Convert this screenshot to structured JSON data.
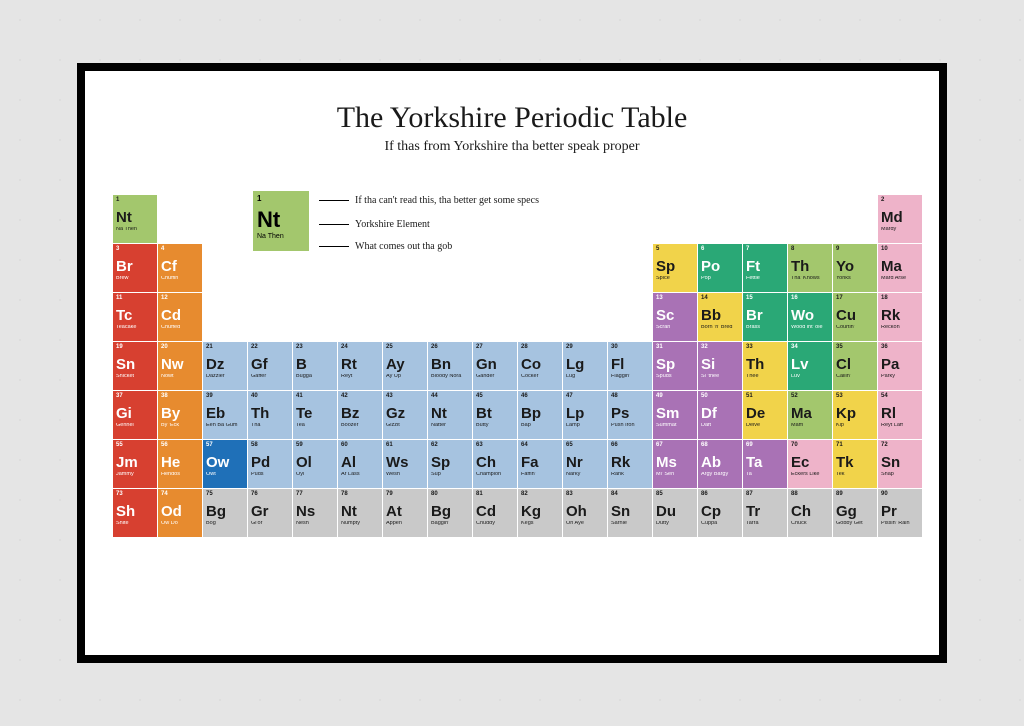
{
  "title": "The Yorkshire Periodic Table",
  "subtitle": "If thas from Yorkshire tha better speak proper",
  "legend": {
    "cell": {
      "num": "1",
      "sym": "Nt",
      "name": "Na Then",
      "bg": "#a3c76d"
    },
    "labels": {
      "top": "If tha can't read this, tha better get some specs",
      "mid": "Yorkshire Element",
      "bot": "What comes out tha gob"
    }
  },
  "colors": {
    "green": "#a3c76d",
    "red": "#d74030",
    "orange": "#e78b2f",
    "lblue": "#a6c3e0",
    "grey": "#c9c9c9",
    "blue": "#1f70b8",
    "yellow": "#f1d34a",
    "dgreen": "#2aa876",
    "purple": "#a972b5",
    "pink": "#eeb3c9",
    "text_dark": "#1a1a1a",
    "text_light": "#ffffff"
  },
  "elements": [
    {
      "r": 1,
      "c": 1,
      "n": 1,
      "s": "Nt",
      "m": "Na Then",
      "k": "green"
    },
    {
      "r": 2,
      "c": 1,
      "n": 3,
      "s": "Br",
      "m": "Brew",
      "k": "red"
    },
    {
      "r": 2,
      "c": 2,
      "n": 4,
      "s": "Cf",
      "m": "Chuffin",
      "k": "orange"
    },
    {
      "r": 2,
      "c": 13,
      "n": 5,
      "s": "Sp",
      "m": "Spice",
      "k": "yellow"
    },
    {
      "r": 2,
      "c": 14,
      "n": 6,
      "s": "Po",
      "m": "Pop",
      "k": "dgreen"
    },
    {
      "r": 2,
      "c": 15,
      "n": 7,
      "s": "Ft",
      "m": "Fettle",
      "k": "dgreen"
    },
    {
      "r": 2,
      "c": 16,
      "n": 8,
      "s": "Th",
      "m": "Tha' Knows",
      "k": "green"
    },
    {
      "r": 2,
      "c": 17,
      "n": 9,
      "s": "Yo",
      "m": "Yonks",
      "k": "green"
    },
    {
      "r": 2,
      "c": 18,
      "n": 10,
      "s": "Ma",
      "m": "Mard Arse",
      "k": "pink"
    },
    {
      "r": 1,
      "c": 18,
      "n": 2,
      "s": "Md",
      "m": "Mardy",
      "k": "pink"
    },
    {
      "r": 3,
      "c": 1,
      "n": 11,
      "s": "Tc",
      "m": "Teacake",
      "k": "red"
    },
    {
      "r": 3,
      "c": 2,
      "n": 12,
      "s": "Cd",
      "m": "Chuffed",
      "k": "orange"
    },
    {
      "r": 3,
      "c": 13,
      "n": 13,
      "s": "Sc",
      "m": "Scran",
      "k": "purple"
    },
    {
      "r": 3,
      "c": 14,
      "n": 14,
      "s": "Bb",
      "m": "Born 'n' Bred",
      "k": "yellow"
    },
    {
      "r": 3,
      "c": 15,
      "n": 15,
      "s": "Br",
      "m": "Brass",
      "k": "dgreen"
    },
    {
      "r": 3,
      "c": 16,
      "n": 16,
      "s": "Wo",
      "m": "Wood int' ole",
      "k": "dgreen"
    },
    {
      "r": 3,
      "c": 17,
      "n": 17,
      "s": "Cu",
      "m": "Courtin'",
      "k": "green"
    },
    {
      "r": 3,
      "c": 18,
      "n": 18,
      "s": "Rk",
      "m": "Reckon",
      "k": "pink"
    },
    {
      "r": 4,
      "c": 1,
      "n": 19,
      "s": "Sn",
      "m": "Snicket",
      "k": "red"
    },
    {
      "r": 4,
      "c": 2,
      "n": 20,
      "s": "Nw",
      "m": "Nowt",
      "k": "orange"
    },
    {
      "r": 4,
      "c": 3,
      "n": 21,
      "s": "Dz",
      "m": "Dazzler",
      "k": "lblue"
    },
    {
      "r": 4,
      "c": 4,
      "n": 22,
      "s": "Gf",
      "m": "Gaffer",
      "k": "lblue"
    },
    {
      "r": 4,
      "c": 5,
      "n": 23,
      "s": "B",
      "m": "Bugga",
      "k": "lblue"
    },
    {
      "r": 4,
      "c": 6,
      "n": 24,
      "s": "Rt",
      "m": "Reyt",
      "k": "lblue"
    },
    {
      "r": 4,
      "c": 7,
      "n": 25,
      "s": "Ay",
      "m": "Ay Up",
      "k": "lblue"
    },
    {
      "r": 4,
      "c": 8,
      "n": 26,
      "s": "Bn",
      "m": "Bloody Nora",
      "k": "lblue"
    },
    {
      "r": 4,
      "c": 9,
      "n": 27,
      "s": "Gn",
      "m": "Gander",
      "k": "lblue"
    },
    {
      "r": 4,
      "c": 10,
      "n": 28,
      "s": "Co",
      "m": "Cocker",
      "k": "lblue"
    },
    {
      "r": 4,
      "c": 11,
      "n": 29,
      "s": "Lg",
      "m": "Lug",
      "k": "lblue"
    },
    {
      "r": 4,
      "c": 12,
      "n": 30,
      "s": "Fl",
      "m": "Flaggin'",
      "k": "lblue"
    },
    {
      "r": 4,
      "c": 13,
      "n": 31,
      "s": "Sp",
      "m": "Spuds",
      "k": "purple"
    },
    {
      "r": 4,
      "c": 14,
      "n": 32,
      "s": "Si",
      "m": "Si 'thee",
      "k": "purple"
    },
    {
      "r": 4,
      "c": 15,
      "n": 33,
      "s": "Th",
      "m": "Thee",
      "k": "yellow"
    },
    {
      "r": 4,
      "c": 16,
      "n": 34,
      "s": "Lv",
      "m": "Luv",
      "k": "dgreen"
    },
    {
      "r": 4,
      "c": 17,
      "n": 35,
      "s": "Cl",
      "m": "Callin'",
      "k": "green"
    },
    {
      "r": 4,
      "c": 18,
      "n": 36,
      "s": "Pa",
      "m": "Parky",
      "k": "pink"
    },
    {
      "r": 5,
      "c": 1,
      "n": 37,
      "s": "Gi",
      "m": "Gennel",
      "k": "red"
    },
    {
      "r": 5,
      "c": 2,
      "n": 38,
      "s": "By",
      "m": "By 'Eck",
      "k": "orange"
    },
    {
      "r": 5,
      "c": 3,
      "n": 39,
      "s": "Eb",
      "m": "Eeh Ba Gum",
      "k": "lblue"
    },
    {
      "r": 5,
      "c": 4,
      "n": 40,
      "s": "Th",
      "m": "Tha",
      "k": "lblue"
    },
    {
      "r": 5,
      "c": 5,
      "n": 41,
      "s": "Te",
      "m": "Tea",
      "k": "lblue"
    },
    {
      "r": 5,
      "c": 6,
      "n": 42,
      "s": "Bz",
      "m": "Boozer",
      "k": "lblue"
    },
    {
      "r": 5,
      "c": 7,
      "n": 43,
      "s": "Gz",
      "m": "Gizzit",
      "k": "lblue"
    },
    {
      "r": 5,
      "c": 8,
      "n": 44,
      "s": "Nt",
      "m": "Natter",
      "k": "lblue"
    },
    {
      "r": 5,
      "c": 9,
      "n": 45,
      "s": "Bt",
      "m": "Butty",
      "k": "lblue"
    },
    {
      "r": 5,
      "c": 10,
      "n": 46,
      "s": "Bp",
      "m": "Bap",
      "k": "lblue"
    },
    {
      "r": 5,
      "c": 11,
      "n": 47,
      "s": "Lp",
      "m": "Lamp",
      "k": "lblue"
    },
    {
      "r": 5,
      "c": 12,
      "n": 48,
      "s": "Ps",
      "m": "Push Iron",
      "k": "lblue"
    },
    {
      "r": 5,
      "c": 13,
      "n": 49,
      "s": "Sm",
      "m": "Summat",
      "k": "purple"
    },
    {
      "r": 5,
      "c": 14,
      "n": 50,
      "s": "Df",
      "m": "Daft",
      "k": "purple"
    },
    {
      "r": 5,
      "c": 15,
      "n": 51,
      "s": "De",
      "m": "Delve",
      "k": "yellow"
    },
    {
      "r": 5,
      "c": 16,
      "n": 52,
      "s": "Ma",
      "m": "Mam",
      "k": "green"
    },
    {
      "r": 5,
      "c": 17,
      "n": 53,
      "s": "Kp",
      "m": "Kip",
      "k": "yellow"
    },
    {
      "r": 5,
      "c": 18,
      "n": 54,
      "s": "Rl",
      "m": "Reyt Laff",
      "k": "pink"
    },
    {
      "r": 6,
      "c": 1,
      "n": 55,
      "s": "Jm",
      "m": "Jammy",
      "k": "red"
    },
    {
      "r": 6,
      "c": 2,
      "n": 56,
      "s": "He",
      "m": "Hendos",
      "k": "orange"
    },
    {
      "r": 6,
      "c": 3,
      "n": 57,
      "s": "Ow",
      "m": "Owt",
      "k": "blue"
    },
    {
      "r": 6,
      "c": 4,
      "n": 58,
      "s": "Pd",
      "m": "Puds",
      "k": "lblue"
    },
    {
      "r": 6,
      "c": 5,
      "n": 59,
      "s": "Ol",
      "m": "Oyl",
      "k": "lblue"
    },
    {
      "r": 6,
      "c": 6,
      "n": 60,
      "s": "Al",
      "m": "Ar Lass",
      "k": "lblue"
    },
    {
      "r": 6,
      "c": 7,
      "n": 61,
      "s": "Ws",
      "m": "Wesh",
      "k": "lblue"
    },
    {
      "r": 6,
      "c": 8,
      "n": 62,
      "s": "Sp",
      "m": "Sup",
      "k": "lblue"
    },
    {
      "r": 6,
      "c": 9,
      "n": 63,
      "s": "Ch",
      "m": "Champion",
      "k": "lblue"
    },
    {
      "r": 6,
      "c": 10,
      "n": 64,
      "s": "Fa",
      "m": "Faffin'",
      "k": "lblue"
    },
    {
      "r": 6,
      "c": 11,
      "n": 65,
      "s": "Nr",
      "m": "Narky",
      "k": "lblue"
    },
    {
      "r": 6,
      "c": 12,
      "n": 66,
      "s": "Rk",
      "m": "Rank",
      "k": "lblue"
    },
    {
      "r": 6,
      "c": 13,
      "n": 67,
      "s": "Ms",
      "m": "Mi' Sen",
      "k": "purple"
    },
    {
      "r": 6,
      "c": 14,
      "n": 68,
      "s": "Ab",
      "m": "Argy Bargy",
      "k": "purple"
    },
    {
      "r": 6,
      "c": 15,
      "n": 69,
      "s": "Ta",
      "m": "Ta",
      "k": "purple"
    },
    {
      "r": 6,
      "c": 16,
      "n": 70,
      "s": "Ec",
      "m": "Eckers Like",
      "k": "pink"
    },
    {
      "r": 6,
      "c": 17,
      "n": 71,
      "s": "Tk",
      "m": "Tek",
      "k": "yellow"
    },
    {
      "r": 6,
      "c": 18,
      "n": 72,
      "s": "Sn",
      "m": "Snap",
      "k": "pink"
    },
    {
      "r": 7,
      "c": 1,
      "n": 73,
      "s": "Sh",
      "m": "Shite",
      "k": "red"
    },
    {
      "r": 7,
      "c": 2,
      "n": 74,
      "s": "Od",
      "m": "Ow Do",
      "k": "orange"
    },
    {
      "r": 7,
      "c": 3,
      "n": 75,
      "s": "Bg",
      "m": "Bog",
      "k": "grey"
    },
    {
      "r": 7,
      "c": 4,
      "n": 76,
      "s": "Gr",
      "m": "Gi'or",
      "k": "grey"
    },
    {
      "r": 7,
      "c": 5,
      "n": 77,
      "s": "Ns",
      "m": "Nesh",
      "k": "grey"
    },
    {
      "r": 7,
      "c": 6,
      "n": 78,
      "s": "Nt",
      "m": "Numpty",
      "k": "grey"
    },
    {
      "r": 7,
      "c": 7,
      "n": 79,
      "s": "At",
      "m": "Appen",
      "k": "grey"
    },
    {
      "r": 7,
      "c": 8,
      "n": 80,
      "s": "Bg",
      "m": "Baggin'",
      "k": "grey"
    },
    {
      "r": 7,
      "c": 9,
      "n": 81,
      "s": "Cd",
      "m": "Chuddy",
      "k": "grey"
    },
    {
      "r": 7,
      "c": 10,
      "n": 82,
      "s": "Kg",
      "m": "Kegs",
      "k": "grey"
    },
    {
      "r": 7,
      "c": 11,
      "n": 83,
      "s": "Oh",
      "m": "Oh Aye",
      "k": "grey"
    },
    {
      "r": 7,
      "c": 12,
      "n": 84,
      "s": "Sn",
      "m": "Sarnie",
      "k": "grey"
    },
    {
      "r": 7,
      "c": 13,
      "n": 85,
      "s": "Du",
      "m": "Dutty",
      "k": "grey"
    },
    {
      "r": 7,
      "c": 14,
      "n": 86,
      "s": "Cp",
      "m": "Cuppa",
      "k": "grey"
    },
    {
      "r": 7,
      "c": 15,
      "n": 87,
      "s": "Tr",
      "m": "Tarra",
      "k": "grey"
    },
    {
      "r": 7,
      "c": 16,
      "n": 88,
      "s": "Ch",
      "m": "Chuck",
      "k": "grey"
    },
    {
      "r": 7,
      "c": 17,
      "n": 89,
      "s": "Gg",
      "m": "Gobby Get",
      "k": "grey"
    },
    {
      "r": 7,
      "c": 18,
      "n": 90,
      "s": "Pr",
      "m": "Pissin' Rain",
      "k": "grey"
    }
  ],
  "light_text_keys": [
    "red",
    "orange",
    "blue",
    "dgreen",
    "purple"
  ]
}
